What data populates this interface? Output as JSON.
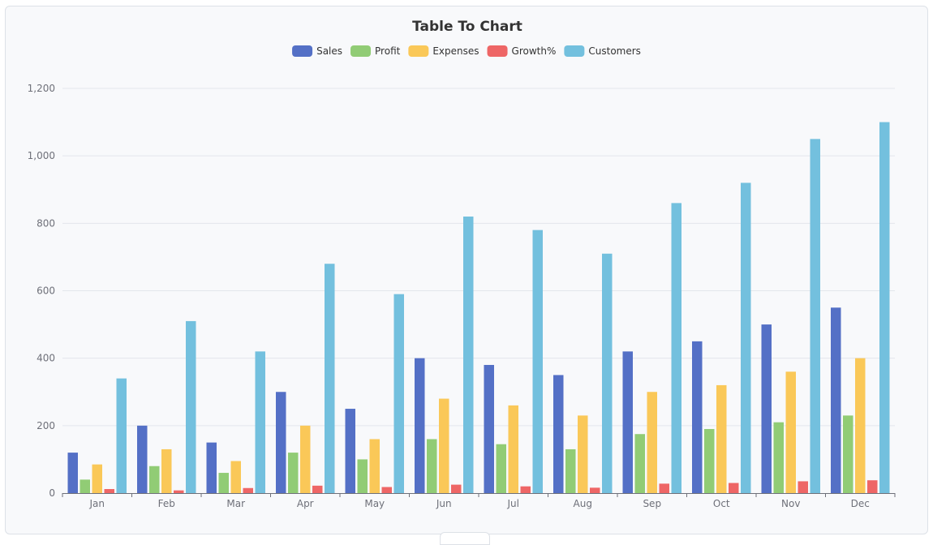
{
  "chart_data": {
    "type": "bar",
    "title": "Table To Chart",
    "categories": [
      "Jan",
      "Feb",
      "Mar",
      "Apr",
      "May",
      "Jun",
      "Jul",
      "Aug",
      "Sep",
      "Oct",
      "Nov",
      "Dec"
    ],
    "series": [
      {
        "name": "Sales",
        "color": "#5470c6",
        "values": [
          120,
          200,
          150,
          300,
          250,
          400,
          380,
          350,
          420,
          450,
          500,
          550
        ]
      },
      {
        "name": "Profit",
        "color": "#91cc75",
        "values": [
          40,
          80,
          60,
          120,
          100,
          160,
          145,
          130,
          175,
          190,
          210,
          230
        ]
      },
      {
        "name": "Expenses",
        "color": "#fac858",
        "values": [
          85,
          130,
          95,
          200,
          160,
          280,
          260,
          230,
          300,
          320,
          360,
          400
        ]
      },
      {
        "name": "Growth%",
        "color": "#ee6666",
        "values": [
          12,
          8,
          15,
          22,
          18,
          25,
          20,
          16,
          28,
          30,
          35,
          38
        ]
      },
      {
        "name": "Customers",
        "color": "#73c0de",
        "values": [
          340,
          510,
          420,
          680,
          590,
          820,
          780,
          710,
          860,
          920,
          1050,
          1100
        ]
      }
    ],
    "yticks": [
      "0",
      "200",
      "400",
      "600",
      "800",
      "1,000",
      "1,200"
    ],
    "ylim": [
      0,
      1200
    ],
    "grid": true,
    "legend_position": "top-center"
  }
}
